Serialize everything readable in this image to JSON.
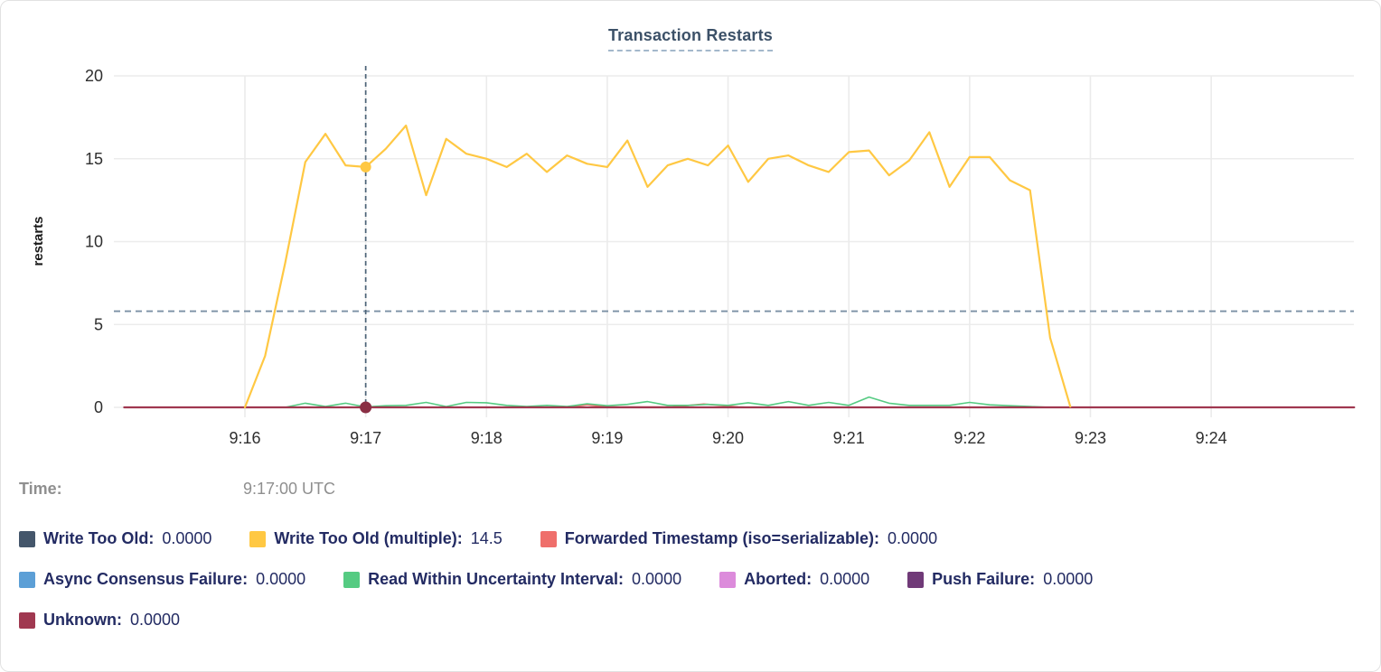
{
  "chart_data": {
    "type": "line",
    "title": "Transaction Restarts",
    "ylabel": "restarts",
    "ylim": [
      0,
      20
    ],
    "yticks": [
      0,
      5,
      10,
      15,
      20
    ],
    "xticks": [
      "9:16",
      "9:17",
      "9:18",
      "9:19",
      "9:20",
      "9:21",
      "9:22",
      "9:23",
      "9:24"
    ],
    "seconds_per_tick": 60,
    "grid": true,
    "legend_position": "bottom",
    "threshold_value": 5.8,
    "threshold_color": "#7b90a4",
    "crosshair_color": "#4c6377",
    "hover": {
      "label": "Time:",
      "value": "9:17:00 UTC",
      "t": 60
    },
    "hover_dots": [
      {
        "series": 1,
        "v": 14.5
      },
      {
        "series": 7,
        "v": 0
      }
    ],
    "legend_rows": [
      [
        0,
        1,
        2
      ],
      [
        3,
        4,
        5,
        6
      ],
      [
        7
      ]
    ],
    "draw_order": [
      0,
      3,
      5,
      6,
      2,
      4,
      7,
      1
    ],
    "series": [
      {
        "name": "write-too-old",
        "label": "Write Too Old:",
        "value": "0.0000",
        "color": "#44566b",
        "points": [
          [
            -60,
            0
          ],
          [
            551,
            0
          ]
        ]
      },
      {
        "name": "write-too-old-multiple",
        "label": "Write Too Old (multiple):",
        "value": "14.5",
        "color": "#ffc843",
        "points": [
          [
            0,
            0
          ],
          [
            10,
            3.1
          ],
          [
            20,
            8.7
          ],
          [
            30,
            14.8
          ],
          [
            40,
            16.5
          ],
          [
            50,
            14.6
          ],
          [
            60,
            14.5
          ],
          [
            70,
            15.6
          ],
          [
            80,
            17.0
          ],
          [
            90,
            12.8
          ],
          [
            100,
            16.2
          ],
          [
            110,
            15.3
          ],
          [
            120,
            15.0
          ],
          [
            130,
            14.5
          ],
          [
            140,
            15.3
          ],
          [
            150,
            14.2
          ],
          [
            160,
            15.2
          ],
          [
            170,
            14.7
          ],
          [
            180,
            14.5
          ],
          [
            190,
            16.1
          ],
          [
            200,
            13.3
          ],
          [
            210,
            14.6
          ],
          [
            220,
            15.0
          ],
          [
            230,
            14.6
          ],
          [
            240,
            15.8
          ],
          [
            250,
            13.6
          ],
          [
            260,
            15.0
          ],
          [
            270,
            15.2
          ],
          [
            280,
            14.6
          ],
          [
            290,
            14.2
          ],
          [
            300,
            15.4
          ],
          [
            310,
            15.5
          ],
          [
            320,
            14.0
          ],
          [
            330,
            14.9
          ],
          [
            340,
            16.6
          ],
          [
            350,
            13.3
          ],
          [
            360,
            15.1
          ],
          [
            370,
            15.1
          ],
          [
            380,
            13.7
          ],
          [
            390,
            13.1
          ],
          [
            400,
            4.2
          ],
          [
            410,
            0.05
          ]
        ]
      },
      {
        "name": "forwarded-timestamp",
        "label": "Forwarded Timestamp (iso=serializable):",
        "value": "0.0000",
        "color": "#ef6f6b",
        "points": [
          [
            -60,
            0
          ],
          [
            160,
            0
          ],
          [
            170,
            0.16
          ],
          [
            180,
            0.02
          ],
          [
            212,
            0.02
          ],
          [
            228,
            0.2
          ],
          [
            245,
            0.02
          ],
          [
            252,
            0
          ],
          [
            551,
            0
          ]
        ]
      },
      {
        "name": "async-consensus-failure",
        "label": "Async Consensus Failure:",
        "value": "0.0000",
        "color": "#5c9fd6",
        "points": [
          [
            -60,
            0
          ],
          [
            551,
            0
          ]
        ]
      },
      {
        "name": "read-within-uncertainty-interval",
        "label": "Read Within Uncertainty Interval:",
        "value": "0.0000",
        "color": "#55cb82",
        "points": [
          [
            20,
            0
          ],
          [
            30,
            0.25
          ],
          [
            40,
            0.05
          ],
          [
            50,
            0.25
          ],
          [
            60,
            0.02
          ],
          [
            70,
            0.1
          ],
          [
            80,
            0.12
          ],
          [
            90,
            0.3
          ],
          [
            100,
            0.05
          ],
          [
            110,
            0.3
          ],
          [
            120,
            0.28
          ],
          [
            130,
            0.12
          ],
          [
            140,
            0.05
          ],
          [
            150,
            0.12
          ],
          [
            160,
            0.05
          ],
          [
            170,
            0.22
          ],
          [
            180,
            0.1
          ],
          [
            190,
            0.18
          ],
          [
            200,
            0.35
          ],
          [
            210,
            0.12
          ],
          [
            220,
            0.12
          ],
          [
            230,
            0.18
          ],
          [
            240,
            0.12
          ],
          [
            250,
            0.28
          ],
          [
            260,
            0.12
          ],
          [
            270,
            0.35
          ],
          [
            280,
            0.12
          ],
          [
            290,
            0.3
          ],
          [
            300,
            0.12
          ],
          [
            310,
            0.62
          ],
          [
            320,
            0.25
          ],
          [
            330,
            0.12
          ],
          [
            340,
            0.12
          ],
          [
            350,
            0.12
          ],
          [
            360,
            0.3
          ],
          [
            370,
            0.15
          ],
          [
            380,
            0.1
          ],
          [
            390,
            0.05
          ],
          [
            400,
            0
          ]
        ]
      },
      {
        "name": "aborted",
        "label": "Aborted:",
        "value": "0.0000",
        "color": "#dc8bdb",
        "points": [
          [
            -60,
            0
          ],
          [
            551,
            0
          ]
        ]
      },
      {
        "name": "push-failure",
        "label": "Push Failure:",
        "value": "0.0000",
        "color": "#703a78",
        "points": [
          [
            -60,
            0
          ],
          [
            551,
            0
          ]
        ]
      },
      {
        "name": "unknown",
        "label": "Unknown:",
        "value": "0.0000",
        "color": "#a03850",
        "points": [
          [
            -60,
            0
          ],
          [
            551,
            0
          ]
        ]
      }
    ]
  }
}
